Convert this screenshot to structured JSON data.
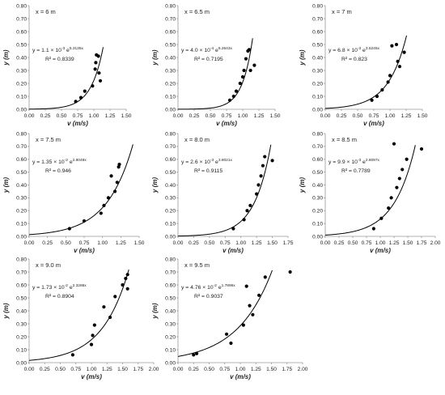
{
  "figure": {
    "y_axis_label": "y (m)",
    "x_axis_label": "v (m/s)"
  },
  "chart_data": [
    {
      "type": "scatter",
      "panel_label": "x = 6 m",
      "equation": "y = 1.1 × 10⁻³ e^5.3135x",
      "eq_base": "y = 1.1 × 10",
      "eq_exp": "-3",
      "eq_e": " e",
      "eq_e_exp": "5.3135x",
      "r2": "R² = 0.8339",
      "fit": {
        "a": 0.0011,
        "b": 5.3135
      },
      "xlim": [
        0,
        1.5
      ],
      "ylim": [
        0,
        0.8
      ],
      "xticks": [
        "0.00",
        "0.25",
        "0.50",
        "0.75",
        "1.00",
        "1.25",
        "1.50"
      ],
      "yticks": [
        "0.00",
        "0.10",
        "0.20",
        "0.30",
        "0.40",
        "0.50",
        "0.60",
        "0.70",
        "0.80"
      ],
      "points": [
        [
          0.72,
          0.06
        ],
        [
          0.8,
          0.09
        ],
        [
          0.86,
          0.14
        ],
        [
          0.98,
          0.18
        ],
        [
          1.02,
          0.31
        ],
        [
          1.03,
          0.36
        ],
        [
          1.04,
          0.42
        ],
        [
          1.07,
          0.41
        ],
        [
          1.08,
          0.28
        ],
        [
          1.1,
          0.22
        ]
      ]
    },
    {
      "type": "scatter",
      "panel_label": "x = 6.5 m",
      "equation": "y = 4.0 × 10⁻⁴ e^6.2643x",
      "eq_base": "y = 4.0 × 10",
      "eq_exp": "-4",
      "eq_e": " e",
      "eq_e_exp": "6.2643x",
      "r2": "R² = 0.7195",
      "fit": {
        "a": 0.0004,
        "b": 6.2643
      },
      "xlim": [
        0,
        1.5
      ],
      "ylim": [
        0,
        0.8
      ],
      "xticks": [
        "0.00",
        "0.25",
        "0.50",
        "0.75",
        "1.00",
        "1.25",
        "1.50"
      ],
      "yticks": [
        "0.00",
        "0.10",
        "0.20",
        "0.30",
        "0.40",
        "0.50",
        "0.60",
        "0.70",
        "0.80"
      ],
      "points": [
        [
          0.8,
          0.07
        ],
        [
          0.86,
          0.1
        ],
        [
          0.9,
          0.14
        ],
        [
          0.96,
          0.2
        ],
        [
          1.0,
          0.25
        ],
        [
          1.02,
          0.3
        ],
        [
          1.05,
          0.39
        ],
        [
          1.08,
          0.45
        ],
        [
          1.1,
          0.46
        ],
        [
          1.12,
          0.3
        ],
        [
          1.18,
          0.34
        ]
      ]
    },
    {
      "type": "scatter",
      "panel_label": "x = 7 m",
      "equation": "y = 6.8 × 10⁻³ e^3.5245x",
      "eq_base": "y = 6.8 × 10",
      "eq_exp": "-3",
      "eq_e": " e",
      "eq_e_exp": "3.5245x",
      "r2": "R² = 0.823",
      "fit": {
        "a": 0.0068,
        "b": 3.5245
      },
      "xlim": [
        0,
        1.5
      ],
      "ylim": [
        0,
        0.8
      ],
      "xticks": [
        "0.00",
        "0.25",
        "0.50",
        "0.75",
        "1.00",
        "1.25",
        "1.50"
      ],
      "yticks": [
        "0.00",
        "0.10",
        "0.20",
        "0.30",
        "0.40",
        "0.50",
        "0.60",
        "0.70",
        "0.80"
      ],
      "points": [
        [
          0.72,
          0.07
        ],
        [
          0.8,
          0.1
        ],
        [
          0.88,
          0.15
        ],
        [
          0.97,
          0.21
        ],
        [
          1.0,
          0.26
        ],
        [
          1.03,
          0.49
        ],
        [
          1.1,
          0.5
        ],
        [
          1.12,
          0.37
        ],
        [
          1.15,
          0.33
        ],
        [
          1.22,
          0.44
        ]
      ]
    },
    {
      "type": "scatter",
      "panel_label": "x = 7.5 m",
      "equation": "y = 1.35 × 10⁻² e^2.8049x",
      "eq_base": "y = 1.35 × 10",
      "eq_exp": "-2",
      "eq_e": " e",
      "eq_e_exp": "2.8049x",
      "r2": "R² = 0.946",
      "fit": {
        "a": 0.0135,
        "b": 2.8049
      },
      "xlim": [
        0,
        1.5
      ],
      "ylim": [
        0,
        0.8
      ],
      "xticks": [
        "0.00",
        "0.25",
        "0.50",
        "0.75",
        "1.00",
        "1.25",
        "1.50"
      ],
      "yticks": [
        "0.00",
        "0.10",
        "0.20",
        "0.30",
        "0.40",
        "0.50",
        "0.60",
        "0.70",
        "0.80"
      ],
      "points": [
        [
          0.55,
          0.06
        ],
        [
          0.75,
          0.12
        ],
        [
          0.98,
          0.18
        ],
        [
          1.02,
          0.24
        ],
        [
          1.08,
          0.3
        ],
        [
          1.12,
          0.47
        ],
        [
          1.17,
          0.35
        ],
        [
          1.2,
          0.42
        ],
        [
          1.22,
          0.54
        ],
        [
          1.23,
          0.56
        ]
      ]
    },
    {
      "type": "scatter",
      "panel_label": "x = 8.0 m",
      "equation": "y = 2.6 × 10⁻³ e^3.8021x",
      "eq_base": "y = 2.6 × 10",
      "eq_exp": "-3",
      "eq_e": " e",
      "eq_e_exp": "3.8021x",
      "r2": "R² = 0.9115",
      "fit": {
        "a": 0.0026,
        "b": 3.8021
      },
      "xlim": [
        0,
        1.75
      ],
      "ylim": [
        0,
        0.8
      ],
      "xticks": [
        "0.00",
        "0.25",
        "0.50",
        "0.75",
        "1.00",
        "1.25",
        "1.50",
        "1.75"
      ],
      "yticks": [
        "0.00",
        "0.10",
        "0.20",
        "0.30",
        "0.40",
        "0.50",
        "0.60",
        "0.70",
        "0.80"
      ],
      "points": [
        [
          0.88,
          0.06
        ],
        [
          1.05,
          0.13
        ],
        [
          1.1,
          0.2
        ],
        [
          1.15,
          0.24
        ],
        [
          1.25,
          0.33
        ],
        [
          1.28,
          0.4
        ],
        [
          1.32,
          0.47
        ],
        [
          1.35,
          0.55
        ],
        [
          1.38,
          0.62
        ],
        [
          1.5,
          0.59
        ]
      ]
    },
    {
      "type": "scatter",
      "panel_label": "x = 8.5 m",
      "equation": "y = 9.9 × 10⁻³ e^2.6097x",
      "eq_base": "y = 9.9 × 10",
      "eq_exp": "-3",
      "eq_e": " e",
      "eq_e_exp": "2.6097x",
      "r2": "R² = 0.7789",
      "fit": {
        "a": 0.0099,
        "b": 2.6097
      },
      "xlim": [
        0,
        2.0
      ],
      "ylim": [
        0,
        0.8
      ],
      "xticks": [
        "0.00",
        "0.25",
        "0.50",
        "0.75",
        "1.00",
        "1.25",
        "1.50",
        "1.75",
        "2.00"
      ],
      "yticks": [
        "0.00",
        "0.10",
        "0.20",
        "0.30",
        "0.40",
        "0.50",
        "0.60",
        "0.70",
        "0.80"
      ],
      "points": [
        [
          0.88,
          0.06
        ],
        [
          1.02,
          0.14
        ],
        [
          1.15,
          0.22
        ],
        [
          1.2,
          0.3
        ],
        [
          1.25,
          0.72
        ],
        [
          1.3,
          0.38
        ],
        [
          1.35,
          0.45
        ],
        [
          1.4,
          0.52
        ],
        [
          1.48,
          0.6
        ],
        [
          1.75,
          0.68
        ]
      ]
    },
    {
      "type": "scatter",
      "panel_label": "x = 9.0 m",
      "equation": "y = 1.73 × 10⁻² e^2.3286x",
      "eq_base": "y = 1.73 × 10",
      "eq_exp": "-2",
      "eq_e": " e",
      "eq_e_exp": "2.3286x",
      "r2": "R² = 0.8904",
      "fit": {
        "a": 0.0173,
        "b": 2.3286
      },
      "xlim": [
        0,
        2.0
      ],
      "ylim": [
        0,
        0.8
      ],
      "xticks": [
        "0.00",
        "0.25",
        "0.50",
        "0.75",
        "1.00",
        "1.25",
        "1.50",
        "1.75",
        "2.00"
      ],
      "yticks": [
        "0.00",
        "0.10",
        "0.20",
        "0.30",
        "0.40",
        "0.50",
        "0.60",
        "0.70",
        "0.80"
      ],
      "points": [
        [
          0.7,
          0.06
        ],
        [
          1.0,
          0.14
        ],
        [
          1.02,
          0.21
        ],
        [
          1.05,
          0.29
        ],
        [
          1.2,
          0.43
        ],
        [
          1.3,
          0.35
        ],
        [
          1.38,
          0.51
        ],
        [
          1.5,
          0.6
        ],
        [
          1.55,
          0.65
        ],
        [
          1.58,
          0.68
        ],
        [
          1.58,
          0.57
        ]
      ]
    },
    {
      "type": "scatter",
      "panel_label": "x = 9.5 m",
      "equation": "y = 4.76 × 10⁻² e^1.7896x",
      "eq_base": "y = 4.76 × 10",
      "eq_exp": "-2",
      "eq_e": " e",
      "eq_e_exp": "1.7896x",
      "r2": "R² = 0.9037",
      "fit": {
        "a": 0.0476,
        "b": 1.7896
      },
      "xlim": [
        0,
        2.0
      ],
      "ylim": [
        0,
        0.8
      ],
      "xticks": [
        "0.00",
        "0.25",
        "0.50",
        "0.75",
        "1.00",
        "1.25",
        "1.50",
        "1.75",
        "2.00"
      ],
      "yticks": [
        "0.00",
        "0.10",
        "0.20",
        "0.30",
        "0.40",
        "0.50",
        "0.60",
        "0.70",
        "0.80"
      ],
      "points": [
        [
          0.25,
          0.06
        ],
        [
          0.3,
          0.07
        ],
        [
          0.78,
          0.22
        ],
        [
          0.85,
          0.15
        ],
        [
          1.05,
          0.29
        ],
        [
          1.1,
          0.59
        ],
        [
          1.15,
          0.44
        ],
        [
          1.2,
          0.37
        ],
        [
          1.3,
          0.52
        ],
        [
          1.4,
          0.66
        ],
        [
          1.8,
          0.7
        ]
      ]
    }
  ]
}
